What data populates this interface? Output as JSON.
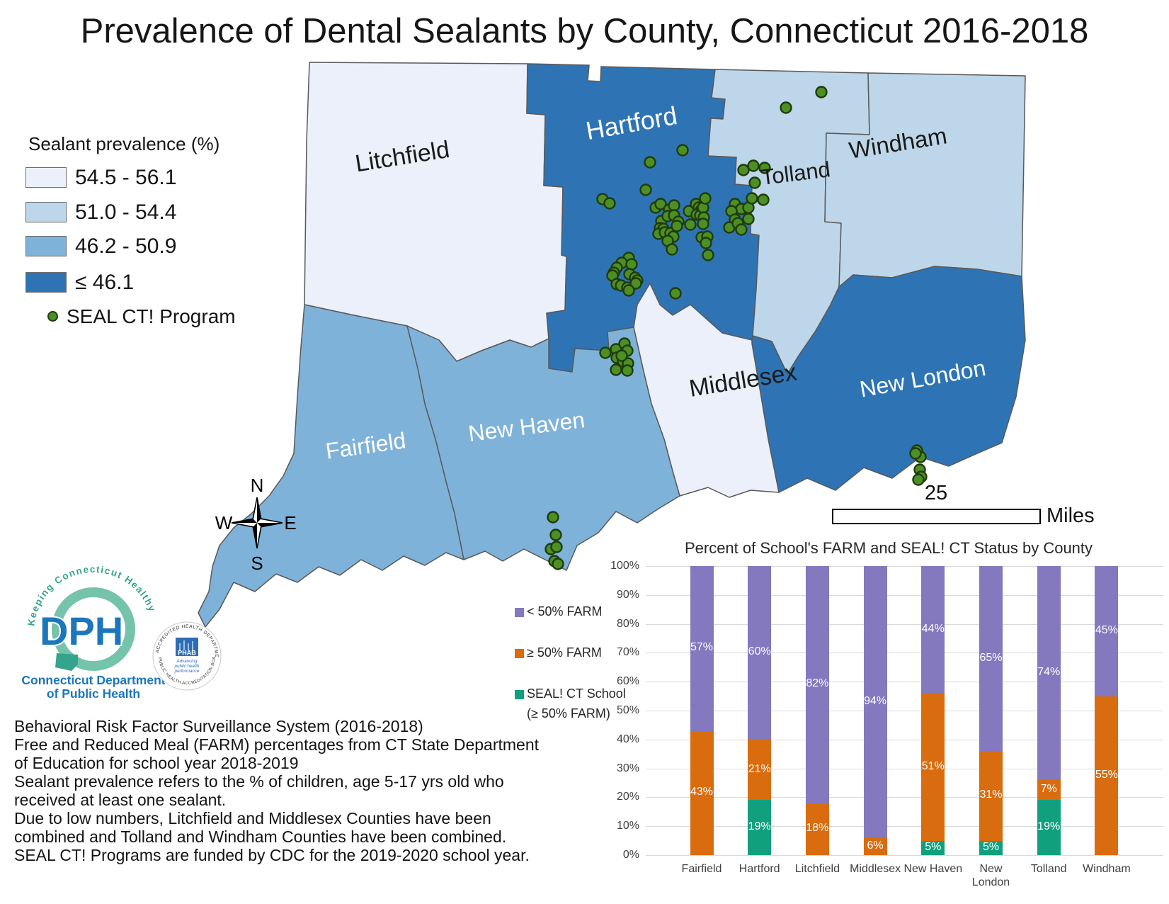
{
  "title": "Prevalence of Dental Sealants by County, Connecticut 2016-2018",
  "map": {
    "legend": {
      "title": "Sealant prevalence (%)",
      "classes": [
        {
          "label": "54.5 - 56.1",
          "color": "#EBF0FA"
        },
        {
          "label": "51.0 - 54.4",
          "color": "#BED6E9"
        },
        {
          "label": "46.2 - 50.9",
          "color": "#7FB2D8"
        },
        {
          "label": "≤ 46.1",
          "color": "#2E74B5"
        }
      ],
      "seal_program_label": "SEAL CT! Program",
      "seal_dot_color": "#4C9023",
      "seal_dot_outline": "#203A0E"
    },
    "counties": [
      {
        "name": "Litchfield",
        "class": "54.5 - 56.1",
        "label_color": "#1a1a1a"
      },
      {
        "name": "Hartford",
        "class": "≤ 46.1",
        "label_color": "#ffffff"
      },
      {
        "name": "Tolland",
        "class": "51.0 - 54.4",
        "label_color": "#1a1a1a"
      },
      {
        "name": "Windham",
        "class": "51.0 - 54.4",
        "label_color": "#1a1a1a"
      },
      {
        "name": "Middlesex",
        "class": "54.5 - 56.1",
        "label_color": "#1a1a1a"
      },
      {
        "name": "New Haven",
        "class": "46.2 - 50.9",
        "label_color": "#ffffff"
      },
      {
        "name": "New London",
        "class": "≤ 46.1",
        "label_color": "#ffffff"
      },
      {
        "name": "Fairfield",
        "class": "46.2 - 50.9",
        "label_color": "#ffffff"
      }
    ],
    "seal_dots": {
      "hartford": [
        [
          964,
          212
        ],
        [
          918,
          229
        ],
        [
          912,
          268
        ],
        [
          851,
          281
        ],
        [
          861,
          287
        ],
        [
          926,
          293
        ],
        [
          933,
          288
        ],
        [
          945,
          296
        ],
        [
          952,
          290
        ],
        [
          934,
          312
        ],
        [
          943,
          305
        ],
        [
          952,
          304
        ],
        [
          932,
          322
        ],
        [
          937,
          323
        ],
        [
          930,
          330
        ],
        [
          939,
          328
        ],
        [
          947,
          329
        ],
        [
          951,
          334
        ],
        [
          943,
          340
        ],
        [
          949,
          352
        ],
        [
          958,
          313
        ],
        [
          956,
          319
        ],
        [
          973,
          298
        ],
        [
          975,
          317
        ],
        [
          983,
          288
        ],
        [
          987,
          293
        ],
        [
          990,
          297
        ],
        [
          984,
          303
        ],
        [
          989,
          304
        ],
        [
          993,
          293
        ],
        [
          996,
          280
        ],
        [
          994,
          307
        ],
        [
          993,
          316
        ],
        [
          991,
          335
        ],
        [
          999,
          334
        ],
        [
          997,
          343
        ],
        [
          1000,
          360
        ],
        [
          1038,
          288
        ],
        [
          1047,
          295
        ],
        [
          1057,
          293
        ],
        [
          1033,
          298
        ],
        [
          1038,
          310
        ],
        [
          1057,
          309
        ],
        [
          1030,
          321
        ],
        [
          1042,
          315
        ],
        [
          1047,
          324
        ],
        [
          954,
          414
        ]
      ],
      "hartford_loop": [
        [
          888,
          364
        ],
        [
          878,
          371
        ],
        [
          892,
          373
        ],
        [
          871,
          378
        ],
        [
          867,
          385
        ],
        [
          865,
          389
        ],
        [
          889,
          387
        ],
        [
          897,
          392
        ],
        [
          900,
          396
        ],
        [
          871,
          401
        ],
        [
          877,
          403
        ],
        [
          886,
          406
        ],
        [
          898,
          400
        ],
        [
          888,
          410
        ]
      ],
      "tolland": [
        [
          1110,
          152
        ],
        [
          1160,
          130
        ],
        [
          1050,
          240
        ],
        [
          1064,
          234
        ],
        [
          1080,
          237
        ],
        [
          1066,
          258
        ],
        [
          1062,
          280
        ],
        [
          1078,
          282
        ]
      ],
      "new_haven_east": [
        [
          855,
          498
        ],
        [
          870,
          493
        ],
        [
          871,
          505
        ],
        [
          882,
          485
        ],
        [
          886,
          495
        ],
        [
          880,
          510
        ],
        [
          887,
          513
        ],
        [
          870,
          522
        ],
        [
          886,
          523
        ],
        [
          878,
          502
        ]
      ],
      "new_haven_city": [
        [
          781,
          730
        ],
        [
          785,
          755
        ],
        [
          778,
          775
        ],
        [
          786,
          772
        ],
        [
          783,
          792
        ],
        [
          788,
          796
        ]
      ],
      "new_london": [
        [
          1295,
          636
        ],
        [
          1300,
          645
        ],
        [
          1293,
          640
        ],
        [
          1299,
          663
        ],
        [
          1301,
          673
        ],
        [
          1297,
          677
        ]
      ]
    },
    "compass": {
      "n": "N",
      "e": "E",
      "s": "S",
      "w": "W"
    },
    "scale_bar": {
      "distance": "25",
      "unit": "Miles"
    }
  },
  "logos": {
    "dph": {
      "arc_text": "Keeping Connecticut Healthy",
      "acronym": "DPH",
      "line1": "Connecticut Department",
      "line2": "of Public Health"
    },
    "phab": {
      "top_arc": "ACCREDITED HEALTH DEPARTMENT",
      "bottom_arc": "PUBLIC HEALTH ACCREDITATION BOARD",
      "acronym": "PHAB",
      "tagline1": "Advancing",
      "tagline2": "public health",
      "tagline3": "performance"
    }
  },
  "footnotes": [
    "Behavioral Risk Factor Surveillance System (2016-2018)",
    "Free and Reduced Meal (FARM) percentages from CT State Department",
    "of Education for school year 2018-2019",
    "Sealant prevalence refers to the % of children, age 5-17 yrs old who",
    "received at least one sealant.",
    "Due to low numbers, Litchfield and Middlesex Counties have been",
    "combined and Tolland and Windham Counties have been combined.",
    "SEAL CT! Programs are funded by CDC for the 2019-2020 school year."
  ],
  "chart_data": {
    "type": "bar",
    "stacked": true,
    "title": "Percent of School's FARM and SEAL! CT Status by County",
    "categories": [
      "Fairfield",
      "Hartford",
      "Litchfield",
      "Middlesex",
      "New Haven",
      "New London",
      "Tolland",
      "Windham"
    ],
    "series": [
      {
        "name": "SEAL! CT School (≥ 50% FARM)",
        "color": "#11A07E",
        "values": [
          0,
          19,
          0,
          0,
          5,
          5,
          19,
          0
        ]
      },
      {
        "name": "≥ 50% FARM",
        "color": "#D96C0E",
        "values": [
          43,
          21,
          18,
          6,
          51,
          31,
          7,
          55
        ]
      },
      {
        "name": "< 50% FARM",
        "color": "#8478BE",
        "values": [
          57,
          60,
          82,
          94,
          44,
          65,
          74,
          45
        ]
      }
    ],
    "ylim": [
      0,
      100
    ],
    "y_ticks": [
      "0%",
      "10%",
      "20%",
      "30%",
      "40%",
      "50%",
      "60%",
      "70%",
      "80%",
      "90%",
      "100%"
    ],
    "grid": true,
    "legend_position": "left"
  }
}
